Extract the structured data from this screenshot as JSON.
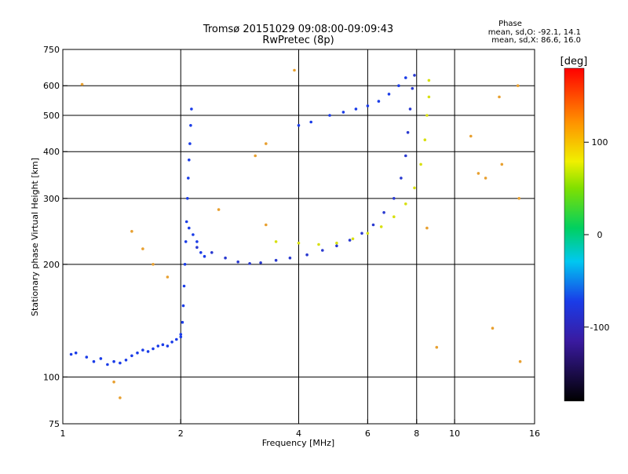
{
  "chart_data": {
    "type": "scatter",
    "title": [
      "Tromsø 20151029 09:08:00-09:09:43",
      "RwPretec (8p)"
    ],
    "phase_stats": {
      "heading": "Phase",
      "line1": "mean, sd,O: -92.1, 14.1",
      "line2": "mean, sd,X:  86.6, 16.0"
    },
    "xlabel": "Frequency [MHz]",
    "ylabel": "Stationary phase Virtual Height [km]",
    "x_scale": "log",
    "y_scale": "log",
    "xlim": [
      1,
      16
    ],
    "ylim": [
      75,
      750
    ],
    "x_ticks": [
      1,
      2,
      4,
      6,
      8,
      10,
      16
    ],
    "x_tick_labels": [
      "1",
      "2",
      "4",
      "6",
      "8",
      "10",
      "16"
    ],
    "y_ticks": [
      75,
      100,
      200,
      300,
      400,
      500,
      600,
      750
    ],
    "y_tick_labels": [
      "75",
      "100",
      "200",
      "300",
      "400",
      "500",
      "600",
      "750"
    ],
    "x_gridlines": [
      2,
      4,
      6,
      8,
      10
    ],
    "y_gridlines": [
      100,
      200,
      300,
      400,
      500,
      600
    ],
    "colorbar": {
      "label": "[deg]",
      "range": [
        -180,
        180
      ],
      "ticks": [
        100,
        0,
        -100
      ],
      "tick_labels": [
        "100",
        "0",
        "-100"
      ]
    },
    "series": [
      {
        "trace": "low-E",
        "color": "#1a3ce8",
        "points": [
          [
            1.05,
            115
          ],
          [
            1.08,
            116
          ],
          [
            1.15,
            113
          ],
          [
            1.2,
            110
          ],
          [
            1.25,
            112
          ],
          [
            1.3,
            108
          ],
          [
            1.35,
            110
          ],
          [
            1.4,
            109
          ],
          [
            1.45,
            111
          ],
          [
            1.5,
            114
          ],
          [
            1.55,
            116
          ],
          [
            1.6,
            118
          ],
          [
            1.65,
            117
          ],
          [
            1.7,
            119
          ],
          [
            1.75,
            121
          ],
          [
            1.8,
            122
          ],
          [
            1.85,
            121
          ],
          [
            1.9,
            124
          ],
          [
            1.95,
            126
          ],
          [
            2.0,
            128
          ]
        ]
      },
      {
        "trace": "E-cusp",
        "color": "#1a3ce8",
        "points": [
          [
            2.0,
            130
          ],
          [
            2.02,
            140
          ],
          [
            2.03,
            155
          ],
          [
            2.04,
            175
          ],
          [
            2.05,
            200
          ],
          [
            2.06,
            230
          ],
          [
            2.07,
            260
          ],
          [
            2.08,
            300
          ],
          [
            2.09,
            340
          ],
          [
            2.1,
            380
          ],
          [
            2.11,
            420
          ],
          [
            2.12,
            470
          ],
          [
            2.13,
            520
          ],
          [
            2.1,
            250
          ],
          [
            2.15,
            240
          ],
          [
            2.2,
            230
          ],
          [
            2.25,
            215
          ],
          [
            2.3,
            210
          ]
        ]
      },
      {
        "trace": "F-O",
        "color": "#2a3ad0",
        "points": [
          [
            2.2,
            222
          ],
          [
            2.4,
            215
          ],
          [
            2.6,
            208
          ],
          [
            2.8,
            203
          ],
          [
            3.0,
            201
          ],
          [
            3.2,
            202
          ],
          [
            3.5,
            205
          ],
          [
            3.8,
            208
          ],
          [
            4.2,
            212
          ],
          [
            4.6,
            218
          ],
          [
            5.0,
            224
          ],
          [
            5.4,
            232
          ],
          [
            5.8,
            242
          ],
          [
            6.2,
            255
          ],
          [
            6.6,
            275
          ],
          [
            7.0,
            300
          ],
          [
            7.3,
            340
          ],
          [
            7.5,
            390
          ],
          [
            7.6,
            450
          ],
          [
            7.7,
            520
          ],
          [
            7.8,
            590
          ],
          [
            7.9,
            640
          ]
        ]
      },
      {
        "trace": "F-X",
        "color": "#d8e010",
        "points": [
          [
            3.5,
            230
          ],
          [
            4.0,
            228
          ],
          [
            4.5,
            226
          ],
          [
            5.0,
            228
          ],
          [
            5.5,
            234
          ],
          [
            6.0,
            242
          ],
          [
            6.5,
            252
          ],
          [
            7.0,
            268
          ],
          [
            7.5,
            290
          ],
          [
            7.9,
            320
          ],
          [
            8.2,
            370
          ],
          [
            8.4,
            430
          ],
          [
            8.5,
            500
          ],
          [
            8.6,
            560
          ],
          [
            8.6,
            620
          ]
        ]
      },
      {
        "trace": "oblique",
        "color": "#1a3ce8",
        "points": [
          [
            4.0,
            470
          ],
          [
            4.3,
            480
          ],
          [
            4.8,
            500
          ],
          [
            5.2,
            510
          ],
          [
            5.6,
            520
          ],
          [
            6.0,
            530
          ],
          [
            6.4,
            545
          ],
          [
            6.8,
            570
          ],
          [
            7.2,
            600
          ],
          [
            7.5,
            630
          ]
        ]
      },
      {
        "trace": "scattered",
        "color": "#e8a030",
        "points": [
          [
            1.12,
            605
          ],
          [
            1.5,
            245
          ],
          [
            1.6,
            220
          ],
          [
            1.7,
            200
          ],
          [
            1.85,
            185
          ],
          [
            2.5,
            280
          ],
          [
            3.1,
            390
          ],
          [
            3.3,
            420
          ],
          [
            3.9,
            660
          ],
          [
            8.5,
            250
          ],
          [
            9.0,
            120
          ],
          [
            11.0,
            440
          ],
          [
            11.5,
            350
          ],
          [
            12.0,
            340
          ],
          [
            12.5,
            135
          ],
          [
            13.0,
            560
          ],
          [
            13.2,
            370
          ],
          [
            14.5,
            600
          ],
          [
            14.6,
            300
          ],
          [
            14.7,
            110
          ],
          [
            3.3,
            255
          ],
          [
            1.35,
            97
          ],
          [
            1.4,
            88
          ]
        ]
      }
    ]
  }
}
